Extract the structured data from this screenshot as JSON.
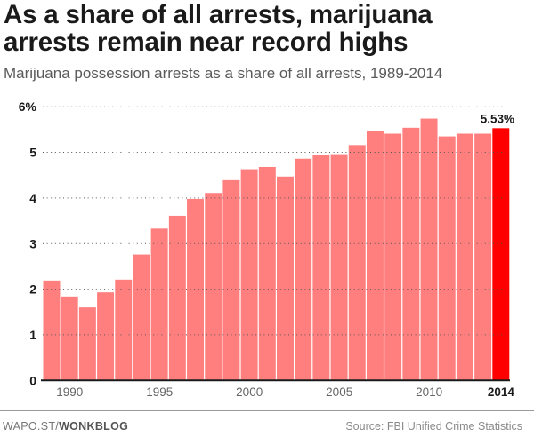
{
  "title_line1": "As a share of all arrests, marijuana",
  "title_line2": "arrests remain near record highs",
  "subtitle": "Marijuana possession arrests as a share of all arrests, 1989-2014",
  "footer": {
    "site_prefix": "WAPO.ST/",
    "site_section": "WONKBLOG",
    "source": "Source: FBI Unified Crime Statistics"
  },
  "colors": {
    "bar": "#ff7f7f",
    "highlight": "#ff0000",
    "text": "#1a1a1a"
  },
  "chart_data": {
    "type": "bar",
    "title": "As a share of all arrests, marijuana arrests remain near record highs",
    "subtitle": "Marijuana possession arrests as a share of all arrests, 1989-2014",
    "xlabel": "",
    "ylabel": "",
    "ylim": [
      0,
      6
    ],
    "grid": true,
    "yticks": [
      0,
      1,
      2,
      3,
      4,
      5,
      6
    ],
    "ytick_labels": [
      "0",
      "1",
      "2",
      "3",
      "4",
      "5",
      "6%"
    ],
    "xtick_labels": [
      {
        "year": 1990,
        "label": "1990"
      },
      {
        "year": 1995,
        "label": "1995"
      },
      {
        "year": 2000,
        "label": "2000"
      },
      {
        "year": 2005,
        "label": "2005"
      },
      {
        "year": 2010,
        "label": "2010"
      },
      {
        "year": 2014,
        "label": "2014",
        "bold": true
      }
    ],
    "categories": [
      1989,
      1990,
      1991,
      1992,
      1993,
      1994,
      1995,
      1996,
      1997,
      1998,
      1999,
      2000,
      2001,
      2002,
      2003,
      2004,
      2005,
      2006,
      2007,
      2008,
      2009,
      2010,
      2011,
      2012,
      2013,
      2014
    ],
    "values": [
      2.19,
      1.84,
      1.6,
      1.93,
      2.21,
      2.76,
      3.33,
      3.61,
      3.98,
      4.11,
      4.39,
      4.63,
      4.68,
      4.47,
      4.86,
      4.94,
      4.96,
      5.16,
      5.46,
      5.41,
      5.54,
      5.74,
      5.35,
      5.41,
      5.41,
      5.53
    ],
    "highlight": {
      "year": 2014,
      "label": "5.53%"
    }
  }
}
